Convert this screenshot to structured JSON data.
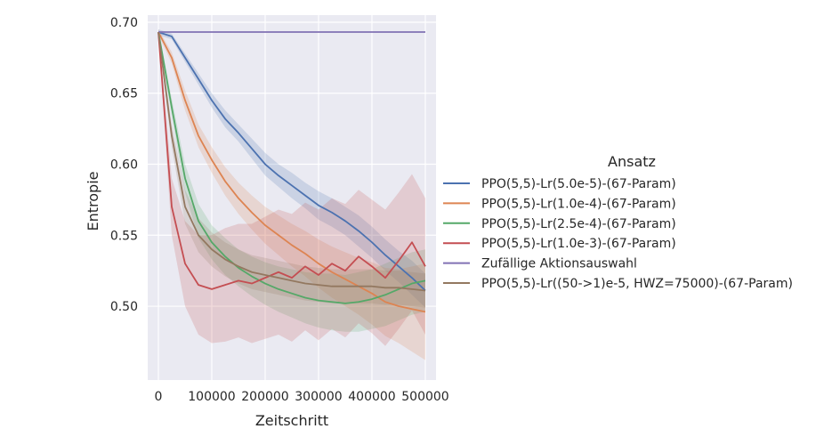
{
  "chart_data": {
    "type": "line",
    "xlabel": "Zeitschritt",
    "ylabel": "Entropie",
    "xlim": [
      -20000,
      520000
    ],
    "ylim": [
      0.448,
      0.705
    ],
    "x_ticks": [
      0,
      100000,
      200000,
      300000,
      400000,
      500000
    ],
    "y_ticks": [
      0.5,
      0.55,
      0.6,
      0.65,
      0.7
    ],
    "x_tick_labels": [
      "0",
      "100000",
      "200000",
      "300000",
      "400000",
      "500000"
    ],
    "y_tick_labels": [
      "0.50",
      "0.55",
      "0.60",
      "0.65",
      "0.70"
    ],
    "grid": true,
    "background": "#eaeaf2",
    "legend": {
      "title": "Ansatz",
      "placement": "right"
    },
    "series": [
      {
        "name": "PPO(5,5)-Lr(5.0e-5)-(67-Param)",
        "color": "#4c72b0",
        "x": [
          0,
          25000,
          50000,
          75000,
          100000,
          125000,
          150000,
          175000,
          200000,
          225000,
          250000,
          275000,
          300000,
          325000,
          350000,
          375000,
          400000,
          425000,
          450000,
          475000,
          500000
        ],
        "y": [
          0.693,
          0.69,
          0.675,
          0.66,
          0.645,
          0.632,
          0.622,
          0.611,
          0.6,
          0.592,
          0.585,
          0.578,
          0.571,
          0.566,
          0.56,
          0.553,
          0.545,
          0.536,
          0.528,
          0.52,
          0.511
        ],
        "band": [
          0.002,
          0.002,
          0.003,
          0.004,
          0.005,
          0.006,
          0.006,
          0.007,
          0.008,
          0.008,
          0.009,
          0.009,
          0.01,
          0.01,
          0.01,
          0.011,
          0.011,
          0.011,
          0.011,
          0.012,
          0.012
        ]
      },
      {
        "name": "PPO(5,5)-Lr(1.0e-4)-(67-Param)",
        "color": "#dd8452",
        "x": [
          0,
          25000,
          50000,
          75000,
          100000,
          125000,
          150000,
          175000,
          200000,
          225000,
          250000,
          275000,
          300000,
          325000,
          350000,
          375000,
          400000,
          425000,
          450000,
          475000,
          500000
        ],
        "y": [
          0.693,
          0.675,
          0.645,
          0.62,
          0.603,
          0.588,
          0.576,
          0.566,
          0.557,
          0.55,
          0.543,
          0.537,
          0.53,
          0.524,
          0.519,
          0.514,
          0.509,
          0.503,
          0.5,
          0.498,
          0.496
        ],
        "band": [
          0.002,
          0.004,
          0.007,
          0.008,
          0.009,
          0.01,
          0.011,
          0.012,
          0.013,
          0.014,
          0.015,
          0.016,
          0.017,
          0.018,
          0.019,
          0.02,
          0.022,
          0.024,
          0.026,
          0.03,
          0.034
        ]
      },
      {
        "name": "PPO(5,5)-Lr(2.5e-4)-(67-Param)",
        "color": "#55a868",
        "x": [
          0,
          25000,
          50000,
          75000,
          100000,
          125000,
          150000,
          175000,
          200000,
          225000,
          250000,
          275000,
          300000,
          325000,
          350000,
          375000,
          400000,
          425000,
          450000,
          475000,
          500000
        ],
        "y": [
          0.693,
          0.64,
          0.59,
          0.56,
          0.545,
          0.535,
          0.527,
          0.521,
          0.516,
          0.512,
          0.509,
          0.506,
          0.504,
          0.503,
          0.502,
          0.503,
          0.505,
          0.508,
          0.512,
          0.516,
          0.518
        ],
        "band": [
          0.002,
          0.006,
          0.01,
          0.012,
          0.012,
          0.013,
          0.013,
          0.014,
          0.015,
          0.016,
          0.017,
          0.018,
          0.019,
          0.02,
          0.02,
          0.021,
          0.021,
          0.022,
          0.022,
          0.022,
          0.022
        ]
      },
      {
        "name": "PPO(5,5)-Lr(1.0e-3)-(67-Param)",
        "color": "#c44e52",
        "x": [
          0,
          25000,
          50000,
          75000,
          100000,
          125000,
          150000,
          175000,
          200000,
          225000,
          250000,
          275000,
          300000,
          325000,
          350000,
          375000,
          400000,
          425000,
          450000,
          475000,
          500000
        ],
        "y": [
          0.693,
          0.57,
          0.53,
          0.515,
          0.512,
          0.515,
          0.518,
          0.516,
          0.52,
          0.524,
          0.52,
          0.528,
          0.522,
          0.53,
          0.525,
          0.535,
          0.528,
          0.52,
          0.532,
          0.545,
          0.528
        ],
        "band": [
          0.002,
          0.02,
          0.03,
          0.035,
          0.038,
          0.04,
          0.04,
          0.042,
          0.043,
          0.044,
          0.045,
          0.045,
          0.046,
          0.046,
          0.047,
          0.047,
          0.047,
          0.048,
          0.048,
          0.048,
          0.048
        ]
      },
      {
        "name": "Zufällige Aktionsauswahl",
        "color": "#8172b3",
        "x": [
          0,
          500000
        ],
        "y": [
          0.6931,
          0.6931
        ],
        "band": [
          0.0,
          0.0
        ]
      },
      {
        "name": "PPO(5,5)-Lr((50->1)e-5, HWZ=75000)-(67-Param)",
        "color": "#937860",
        "x": [
          0,
          25000,
          50000,
          75000,
          100000,
          125000,
          150000,
          175000,
          200000,
          225000,
          250000,
          275000,
          300000,
          325000,
          350000,
          375000,
          400000,
          425000,
          450000,
          475000,
          500000
        ],
        "y": [
          0.693,
          0.62,
          0.57,
          0.55,
          0.54,
          0.533,
          0.528,
          0.524,
          0.522,
          0.52,
          0.518,
          0.516,
          0.515,
          0.514,
          0.514,
          0.514,
          0.514,
          0.513,
          0.513,
          0.512,
          0.511
        ],
        "band": [
          0.002,
          0.008,
          0.012,
          0.012,
          0.012,
          0.012,
          0.012,
          0.012,
          0.012,
          0.012,
          0.012,
          0.012,
          0.012,
          0.012,
          0.012,
          0.012,
          0.012,
          0.012,
          0.012,
          0.012,
          0.012
        ]
      }
    ]
  }
}
